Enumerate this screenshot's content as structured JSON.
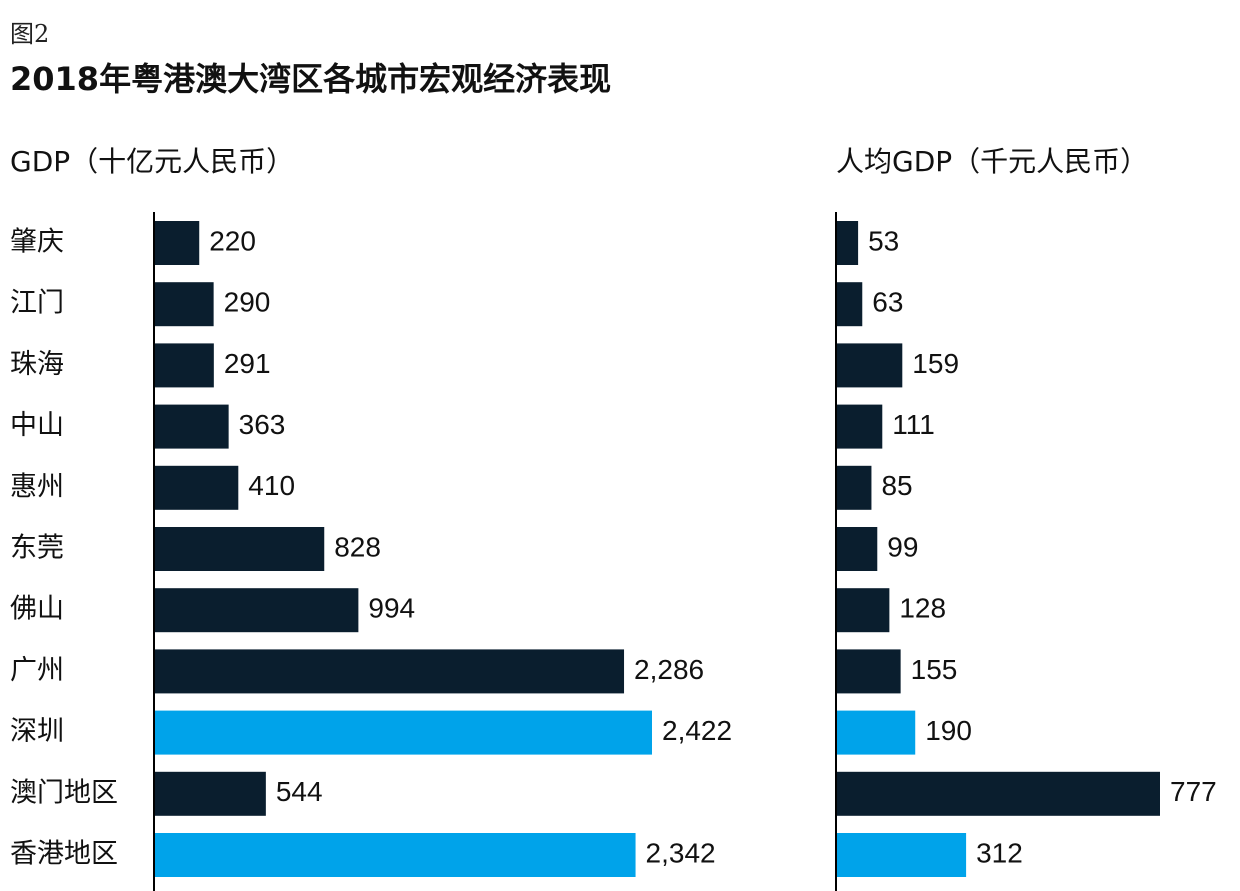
{
  "figure": {
    "label": "图2",
    "title": "2018年粤港澳大湾区各城市宏观经济表现"
  },
  "colors": {
    "dark": "#0a1e2e",
    "highlight": "#00a3ea",
    "axis": "#000000",
    "text": "#111111"
  },
  "chart_data": [
    {
      "type": "bar",
      "orientation": "horizontal",
      "title": "GDP（十亿元人民币）",
      "categories": [
        "肇庆",
        "江门",
        "珠海",
        "中山",
        "惠州",
        "东莞",
        "佛山",
        "广州",
        "深圳",
        "澳门地区",
        "香港地区"
      ],
      "values": [
        220,
        290,
        291,
        363,
        410,
        828,
        994,
        2286,
        2422,
        544,
        2342
      ],
      "value_labels": [
        "220",
        "290",
        "291",
        "363",
        "410",
        "828",
        "994",
        "2,286",
        "2,422",
        "544",
        "2,342"
      ],
      "highlight": [
        false,
        false,
        false,
        false,
        false,
        false,
        false,
        false,
        true,
        false,
        true
      ],
      "xlim": [
        0,
        2422
      ]
    },
    {
      "type": "bar",
      "orientation": "horizontal",
      "title": "人均GDP（千元人民币）",
      "categories": [
        "肇庆",
        "江门",
        "珠海",
        "中山",
        "惠州",
        "东莞",
        "佛山",
        "广州",
        "深圳",
        "澳门地区",
        "香港地区"
      ],
      "values": [
        53,
        63,
        159,
        111,
        85,
        99,
        128,
        155,
        190,
        777,
        312
      ],
      "value_labels": [
        "53",
        "63",
        "159",
        "111",
        "85",
        "99",
        "128",
        "155",
        "190",
        "777",
        "312"
      ],
      "highlight": [
        false,
        false,
        false,
        false,
        false,
        false,
        false,
        false,
        true,
        false,
        true
      ],
      "xlim": [
        0,
        777
      ]
    }
  ]
}
